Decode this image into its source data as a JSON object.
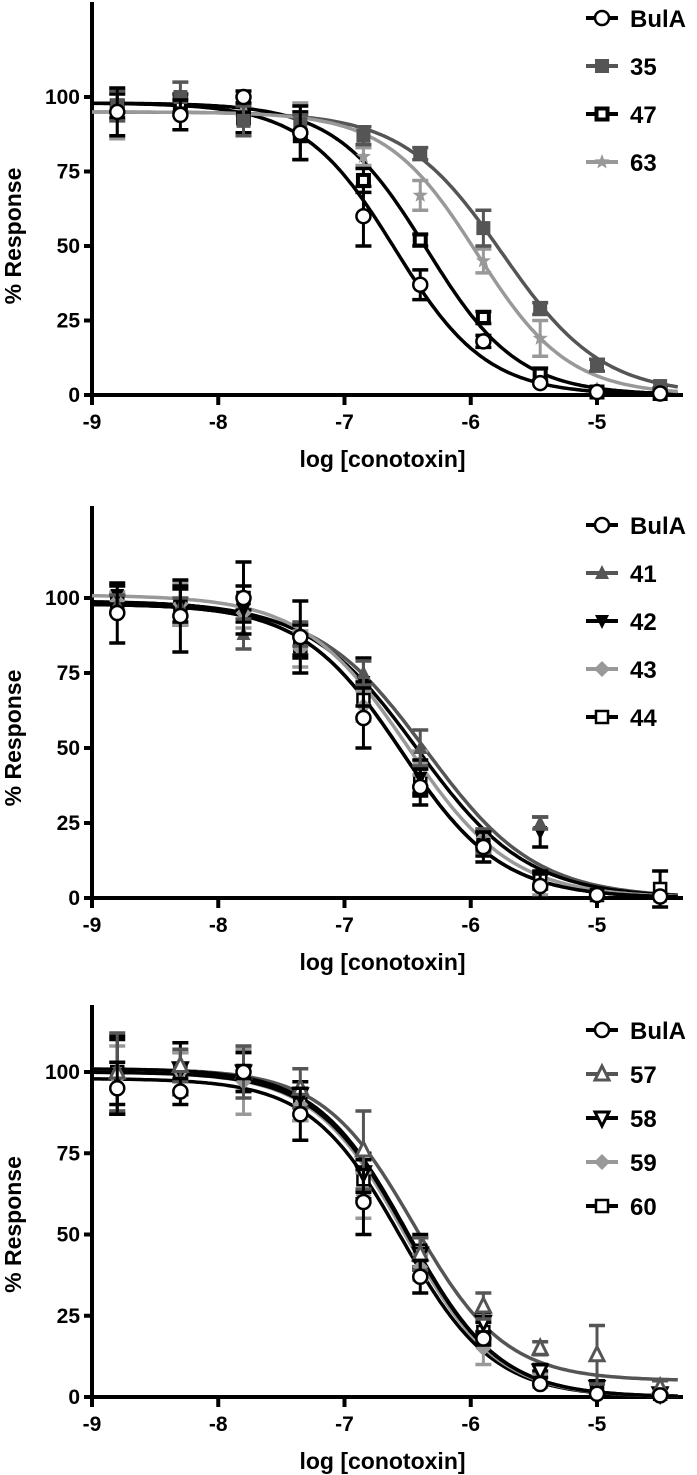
{
  "chart_data": [
    {
      "type": "line",
      "panel": "top",
      "title": "",
      "xlabel": "log [conotoxin]",
      "ylabel": "% Response",
      "xlim": [
        -9,
        -4.35
      ],
      "ylim": [
        0,
        120
      ],
      "xticks": [
        -9,
        -8,
        -7,
        -6,
        -5
      ],
      "yticks": [
        0,
        25,
        50,
        75,
        100
      ],
      "xtick_labels": [
        "-9",
        "-8",
        "-7",
        "-6",
        "-5"
      ],
      "ytick_labels": [
        "0",
        "25",
        "50",
        "75",
        "100"
      ],
      "grid": false,
      "legend_position": "top-right",
      "x": [
        -8.8,
        -8.3,
        -7.8,
        -7.35,
        -6.85,
        -6.4,
        -5.9,
        -5.45,
        -5.0,
        -4.5
      ],
      "series": [
        {
          "name": "BulA",
          "marker": "circle-open",
          "color": "#000000",
          "values": [
            95,
            94,
            100,
            88,
            60,
            37,
            18,
            4,
            1,
            0.5
          ],
          "errors": [
            8,
            5,
            2,
            9,
            10,
            5,
            2,
            1,
            1,
            1
          ],
          "fit": {
            "top": 98,
            "bottom": 0,
            "logIC50": -6.6,
            "hill": 1.2
          }
        },
        {
          "name": "35",
          "marker": "square-filled",
          "color": "#555555",
          "values": [
            97,
            100,
            92,
            91,
            87,
            81,
            56,
            29,
            10,
            3
          ],
          "errors": [
            5,
            5,
            5,
            3,
            3,
            2,
            6,
            2,
            2,
            1
          ],
          "fit": {
            "top": 95,
            "bottom": 0,
            "logIC50": -5.75,
            "hill": 1.1
          }
        },
        {
          "name": "47",
          "marker": "square-open-thick",
          "color": "#000000",
          "values": [
            97,
            98,
            93,
            87,
            72,
            52,
            26,
            7,
            1,
            0.5
          ],
          "errors": [
            4,
            3,
            5,
            8,
            4,
            2,
            2,
            2,
            1,
            1
          ],
          "fit": {
            "top": 98,
            "bottom": 0,
            "logIC50": -6.35,
            "hill": 1.2
          }
        },
        {
          "name": "63",
          "marker": "star",
          "color": "#999999",
          "values": [
            94,
            97,
            97,
            93,
            80,
            67,
            45,
            19,
            2,
            1
          ],
          "errors": [
            8,
            3,
            3,
            5,
            3,
            5,
            4,
            6,
            1,
            1
          ],
          "fit": {
            "top": 95,
            "bottom": 0,
            "logIC50": -5.95,
            "hill": 1.2
          }
        }
      ]
    },
    {
      "type": "line",
      "panel": "middle",
      "title": "",
      "xlabel": "log [conotoxin]",
      "ylabel": "% Response",
      "xlim": [
        -9,
        -4.35
      ],
      "ylim": [
        0,
        120
      ],
      "xticks": [
        -9,
        -8,
        -7,
        -6,
        -5
      ],
      "yticks": [
        0,
        25,
        50,
        75,
        100
      ],
      "xtick_labels": [
        "-9",
        "-8",
        "-7",
        "-6",
        "-5"
      ],
      "ytick_labels": [
        "0",
        "25",
        "50",
        "75",
        "100"
      ],
      "grid": false,
      "legend_position": "top-right",
      "x": [
        -8.8,
        -8.3,
        -7.8,
        -7.35,
        -6.85,
        -6.4,
        -5.9,
        -5.45,
        -5.0,
        -4.5
      ],
      "series": [
        {
          "name": "BulA",
          "marker": "circle-open",
          "color": "#000000",
          "values": [
            95,
            94,
            100,
            87,
            60,
            37,
            17,
            4,
            1,
            0.5
          ],
          "errors": [
            10,
            12,
            12,
            12,
            10,
            6,
            5,
            4,
            1,
            1
          ],
          "fit": {
            "top": 98,
            "bottom": 0,
            "logIC50": -6.55,
            "hill": 1.1
          }
        },
        {
          "name": "41",
          "marker": "triangle-up-filled",
          "color": "#555555",
          "values": [
            98,
            97,
            88,
            88,
            75,
            50,
            19,
            25,
            1,
            0.5
          ],
          "errors": [
            3,
            3,
            5,
            4,
            4,
            6,
            4,
            2,
            1,
            1
          ],
          "fit": {
            "top": 98,
            "bottom": 0,
            "logIC50": -6.35,
            "hill": 1.0
          }
        },
        {
          "name": "42",
          "marker": "triangle-down-filled",
          "color": "#000000",
          "values": [
            101,
            98,
            96,
            86,
            72,
            40,
            18,
            22,
            1,
            0.5
          ],
          "errors": [
            3,
            6,
            4,
            5,
            8,
            6,
            4,
            5,
            1,
            1
          ],
          "fit": {
            "top": 99,
            "bottom": 0,
            "logIC50": -6.42,
            "hill": 1.0
          }
        },
        {
          "name": "43",
          "marker": "diamond-filled",
          "color": "#999999",
          "values": [
            99,
            98,
            95,
            83,
            64,
            45,
            20,
            3,
            1,
            0.5
          ],
          "errors": [
            3,
            7,
            5,
            6,
            5,
            4,
            3,
            2,
            1,
            1
          ],
          "fit": {
            "top": 101,
            "bottom": 0,
            "logIC50": -6.5,
            "hill": 1.05
          }
        },
        {
          "name": "44",
          "marker": "square-open",
          "color": "#000000",
          "values": [
            98,
            97,
            100,
            84,
            66,
            39,
            19,
            6,
            1,
            3
          ],
          "errors": [
            3,
            6,
            4,
            4,
            6,
            4,
            3,
            3,
            1,
            6
          ],
          "fit": {
            "top": 98,
            "bottom": 0,
            "logIC50": -6.55,
            "hill": 1.1
          }
        }
      ]
    },
    {
      "type": "line",
      "panel": "bottom",
      "title": "",
      "xlabel": "log [conotoxin]",
      "ylabel": "% Response",
      "xlim": [
        -9,
        -4.35
      ],
      "ylim": [
        0,
        120
      ],
      "xticks": [
        -9,
        -8,
        -7,
        -6,
        -5
      ],
      "yticks": [
        0,
        25,
        50,
        75,
        100
      ],
      "xtick_labels": [
        "-9",
        "-8",
        "-7",
        "-6",
        "-5"
      ],
      "ytick_labels": [
        "0",
        "25",
        "50",
        "75",
        "100"
      ],
      "grid": false,
      "legend_position": "top-right",
      "x": [
        -8.8,
        -8.3,
        -7.8,
        -7.35,
        -6.85,
        -6.4,
        -5.9,
        -5.45,
        -5.0,
        -4.5
      ],
      "series": [
        {
          "name": "BulA",
          "marker": "circle-open",
          "color": "#000000",
          "values": [
            95,
            94,
            100,
            87,
            60,
            37,
            18,
            4,
            1,
            0.5
          ],
          "errors": [
            8,
            4,
            2,
            8,
            10,
            5,
            2,
            1,
            1,
            1
          ],
          "fit": {
            "top": 98,
            "bottom": 0,
            "logIC50": -6.55,
            "hill": 1.2
          }
        },
        {
          "name": "57",
          "marker": "triangle-up-open",
          "color": "#555555",
          "values": [
            100,
            102,
            100,
            95,
            76,
            44,
            28,
            15,
            13,
            3
          ],
          "errors": [
            12,
            5,
            8,
            6,
            12,
            5,
            4,
            2,
            9,
            2
          ],
          "fit": {
            "top": 101,
            "bottom": 5,
            "logIC50": -6.45,
            "hill": 1.2
          }
        },
        {
          "name": "58",
          "marker": "triangle-down-open",
          "color": "#000000",
          "values": [
            99,
            101,
            100,
            93,
            69,
            44,
            23,
            8,
            3,
            1
          ],
          "errors": [
            12,
            8,
            6,
            4,
            6,
            5,
            3,
            2,
            2,
            1
          ],
          "fit": {
            "top": 101,
            "bottom": 0,
            "logIC50": -6.5,
            "hill": 1.2
          }
        },
        {
          "name": "59",
          "marker": "diamond-filled",
          "color": "#999999",
          "values": [
            98,
            100,
            97,
            90,
            62,
            40,
            15,
            5,
            2,
            1
          ],
          "errors": [
            10,
            6,
            10,
            5,
            7,
            4,
            5,
            2,
            1,
            1
          ],
          "fit": {
            "top": 100,
            "bottom": 0,
            "logIC50": -6.52,
            "hill": 1.2
          }
        },
        {
          "name": "60",
          "marker": "square-open",
          "color": "#000000",
          "values": [
            100,
            100,
            100,
            90,
            67,
            45,
            20,
            6,
            3,
            1
          ],
          "errors": [
            10,
            6,
            6,
            5,
            6,
            5,
            3,
            2,
            2,
            1
          ],
          "fit": {
            "top": 100,
            "bottom": 0,
            "logIC50": -6.5,
            "hill": 1.2
          }
        }
      ]
    }
  ]
}
